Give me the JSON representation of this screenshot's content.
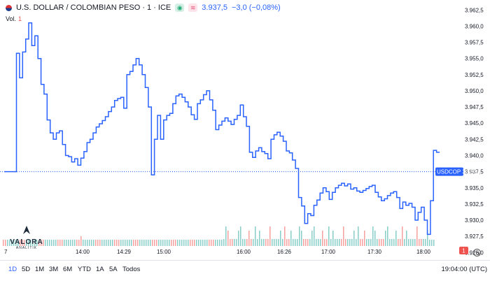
{
  "legend": {
    "symbol": "U.S. DOLLAR / COLOMBIAN PESO · 1 · ICE",
    "price": "3.937,5",
    "change": "−3,0 (−0,08%)",
    "vol_label": "Vol.",
    "vol_value": "1"
  },
  "logo": {
    "name": "VALORA",
    "tagline": "ANALITIK"
  },
  "current_price_label": "USDCOP  3.937,5",
  "volume_badge": "1",
  "ranges": [
    "1D",
    "5D",
    "1M",
    "3M",
    "6M",
    "YTD",
    "1A",
    "5A",
    "Todos"
  ],
  "active_range": "1D",
  "clock": "19:04:00 (UTC)",
  "colors": {
    "line": "#2962ff",
    "vol_up": "#26a69a",
    "vol_down": "#ef5350",
    "label_bg": "#2962ff"
  },
  "chart_data": {
    "type": "line",
    "x_tick_labels": [
      "7",
      "14:00",
      "14:29",
      "15:00",
      "16:00",
      "16:26",
      "17:00",
      "17:30",
      "18:00"
    ],
    "y_tick_labels": [
      "3.962,5",
      "3.960,0",
      "3.957,5",
      "3.955,0",
      "3.952,5",
      "3.950,0",
      "3.947,5",
      "3.945,0",
      "3.942,5",
      "3.940,0",
      "3.937,5",
      "3.935,0",
      "3.932,5",
      "3.930,0",
      "3.927,5",
      "3.925,0"
    ],
    "ylim": [
      3924.6,
      3963.5
    ],
    "current_price": 3937.5,
    "series": [
      {
        "values": [
          3937.5,
          3937.5,
          3937.5,
          3937.5,
          3955.8,
          3952.0,
          3956.0,
          3958.0,
          3960.5,
          3957.0,
          3958.5,
          3955.0,
          3951.0,
          3949.5,
          3945.5,
          3943.5,
          3942.5,
          3943.5,
          3943.8,
          3941.7,
          3940.0,
          3939.8,
          3939.0,
          3939.5,
          3938.5,
          3939.6,
          3940.6,
          3942.0,
          3942.5,
          3943.5,
          3944.4,
          3944.9,
          3945.4,
          3946.0,
          3946.8,
          3947.5,
          3948.5,
          3948.8,
          3949.0,
          3947.3,
          3952.5,
          3953.0,
          3954.0,
          3955.0,
          3954.0,
          3952.5,
          3950.5,
          3947.5,
          3937.0,
          3942.5,
          3946.2,
          3942.5,
          3945.5,
          3946.2,
          3946.5,
          3948.0,
          3949.2,
          3949.5,
          3949.0,
          3948.3,
          3947.5,
          3946.3,
          3945.6,
          3948.0,
          3948.6,
          3949.4,
          3950.0,
          3948.6,
          3947.0,
          3944.0,
          3944.7,
          3945.3,
          3945.8,
          3945.3,
          3944.8,
          3945.6,
          3946.2,
          3947.8,
          3946.0,
          3944.5,
          3940.5,
          3939.7,
          3940.7,
          3941.2,
          3940.6,
          3940.3,
          3939.5,
          3942.5,
          3943.2,
          3943.6,
          3943.0,
          3942.2,
          3940.7,
          3940.4,
          3939.3,
          3938.0,
          3933.5,
          3932.2,
          3929.5,
          3931.0,
          3930.7,
          3932.3,
          3933.1,
          3934.2,
          3935.0,
          3934.4,
          3933.2,
          3934.3,
          3935.0,
          3935.4,
          3935.7,
          3935.3,
          3935.6,
          3934.8,
          3935.0,
          3934.5,
          3934.3,
          3934.6,
          3934.9,
          3935.2,
          3935.4,
          3934.3,
          3933.6,
          3933.0,
          3933.3,
          3933.8,
          3934.2,
          3934.4,
          3933.5,
          3931.8,
          3932.8,
          3932.3,
          3932.6,
          3932.0,
          3930.0,
          3931.2,
          3932.0,
          3930.0,
          3927.8,
          3933.0,
          3940.8,
          3940.5
        ],
        "start_time": "13:40",
        "end_time": "18:12"
      }
    ],
    "volume": {
      "up_color": "#26a69a",
      "down_color": "#ef5350",
      "note": "per-bar volume bars below price line"
    }
  }
}
